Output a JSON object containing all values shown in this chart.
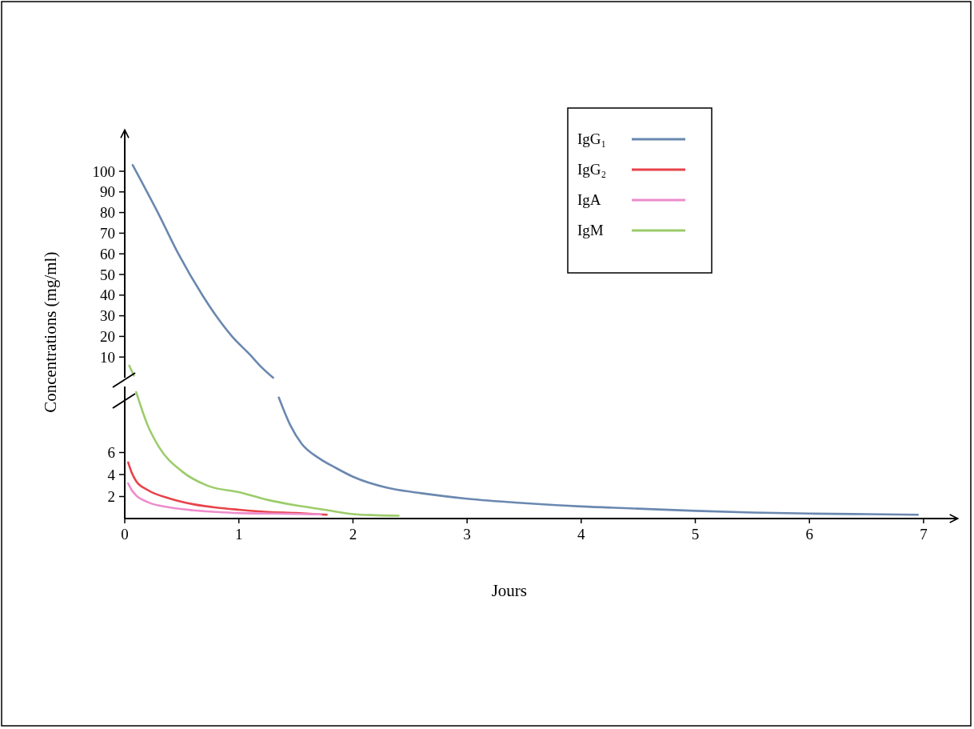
{
  "chart_data": [
    {
      "type": "line",
      "ylabel": "Concentrations (mg/ml)",
      "xlim": [
        0,
        7
      ],
      "xticks": [
        0,
        1,
        2,
        3,
        4,
        5,
        6,
        7
      ],
      "ylim": [
        0,
        120
      ],
      "yticks": [
        10,
        20,
        30,
        40,
        50,
        60,
        70,
        80,
        90,
        100
      ],
      "tick_labels": "y",
      "series": [
        {
          "color": "#6a88b0",
          "x": [
            0.07,
            0.29,
            0.47,
            0.68,
            0.8,
            0.94,
            1.1,
            1.2,
            1.3
          ],
          "values": [
            103,
            80,
            60,
            40,
            30,
            20,
            11,
            5,
            0
          ]
        },
        {
          "color": "#9ccc6a",
          "x": [
            0.04,
            0.08
          ],
          "values": [
            5.8,
            1
          ]
        }
      ]
    },
    {
      "type": "line",
      "xlabel": "Jours",
      "xlim": [
        0,
        7.3
      ],
      "ylim": [
        0,
        12
      ],
      "xticks": [
        0,
        1,
        2,
        3,
        4,
        5,
        6,
        7
      ],
      "yticks": [
        2,
        4,
        6
      ],
      "legend": "top right",
      "series": [
        {
          "name": "IgG₁",
          "color": "#6a88b0",
          "x": [
            1.35,
            1.45,
            1.55,
            1.7,
            1.85,
            2,
            2.3,
            2.6,
            3,
            3.5,
            4,
            4.5,
            5,
            5.5,
            6,
            6.5,
            6.95
          ],
          "values": [
            11,
            8.5,
            6.8,
            5.5,
            4.6,
            3.8,
            2.8,
            2.3,
            1.8,
            1.4,
            1.1,
            0.9,
            0.7,
            0.55,
            0.45,
            0.4,
            0.35
          ]
        },
        {
          "name": "IgG₂",
          "color": "#e8424a",
          "x": [
            0.03,
            0.06,
            0.1,
            0.2,
            0.4,
            0.6,
            0.8,
            1,
            1.25,
            1.5,
            1.77
          ],
          "values": [
            5.1,
            4.2,
            3.4,
            2.6,
            1.8,
            1.3,
            1,
            0.8,
            0.6,
            0.5,
            0.35
          ]
        },
        {
          "name": "IgA",
          "color": "#ee8ccc",
          "x": [
            0.03,
            0.06,
            0.1,
            0.2,
            0.4,
            0.6,
            0.8,
            1,
            1.3,
            1.6,
            1.72
          ],
          "values": [
            3.2,
            2.6,
            2.1,
            1.5,
            1,
            0.75,
            0.6,
            0.5,
            0.45,
            0.4,
            0.38
          ]
        },
        {
          "name": "IgM",
          "color": "#9ccc6a",
          "x": [
            0.1,
            0.2,
            0.3,
            0.5,
            0.75,
            1,
            1.25,
            1.5,
            1.75,
            2,
            2.2,
            2.4
          ],
          "values": [
            11.5,
            8.5,
            6.5,
            4.3,
            2.9,
            2.4,
            1.7,
            1.2,
            0.8,
            0.4,
            0.3,
            0.25
          ]
        }
      ]
    }
  ]
}
